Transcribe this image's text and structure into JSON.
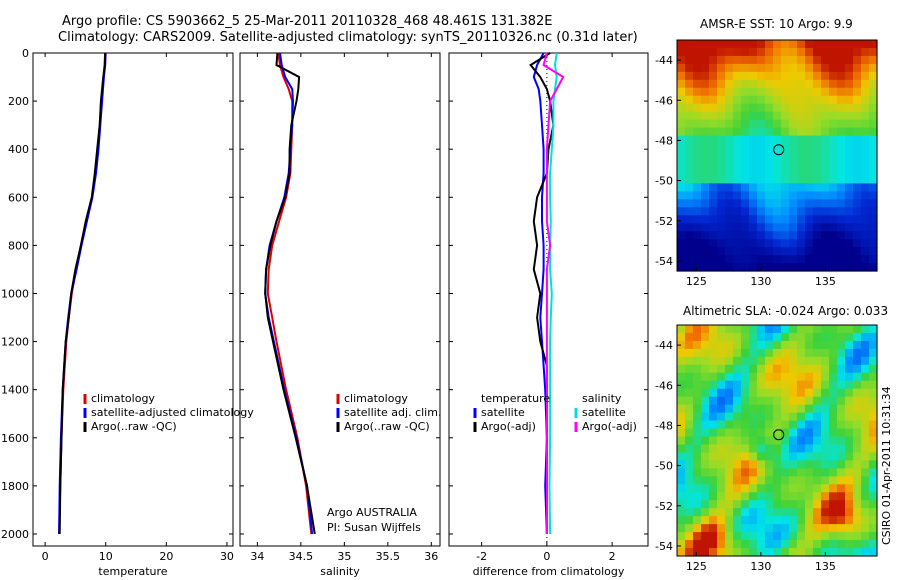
{
  "header": {
    "line1": "Argo profile: CS 5903662_5 25-Mar-2011 20110328_468 48.461S 131.382E",
    "line2": "Climatology: CARS2009. Satellite-adjusted climatology: synTS_20110326.nc (0.31d later)"
  },
  "credit": {
    "line1": "Argo AUSTRALIA",
    "line2": "PI: Susan Wijffels"
  },
  "stamp": "CSIRO 01-Apr-2011 10:31:34",
  "colors": {
    "red": "#e00000",
    "blue": "#0000ff",
    "black": "#000000",
    "cyan": "#00e0e0",
    "magenta": "#ff00ff"
  },
  "chart_data": [
    {
      "type": "line",
      "id": "temperature",
      "xlabel": "temperature",
      "xlim": [
        -2,
        31
      ],
      "ylim": [
        0,
        2050
      ],
      "xticks": [
        0,
        10,
        20,
        30
      ],
      "yticks": [
        0,
        200,
        400,
        600,
        800,
        1000,
        1200,
        1400,
        1600,
        1800,
        2000
      ],
      "legend": [
        "climatology",
        "satellite-adjusted climatology",
        "Argo(..raw -QC)"
      ],
      "depth": [
        0,
        50,
        100,
        200,
        300,
        400,
        500,
        600,
        700,
        800,
        900,
        1000,
        1100,
        1200,
        1400,
        1600,
        1800,
        2000
      ],
      "series": [
        {
          "name": "climatology",
          "color": "red",
          "values": [
            9.9,
            9.8,
            9.6,
            9.3,
            9.0,
            8.7,
            8.3,
            7.7,
            6.8,
            5.9,
            5.1,
            4.4,
            3.9,
            3.5,
            3.0,
            2.7,
            2.5,
            2.3
          ]
        },
        {
          "name": "satellite-adjusted climatology",
          "color": "blue",
          "values": [
            10.0,
            9.9,
            9.7,
            9.4,
            9.1,
            8.8,
            8.4,
            7.8,
            6.9,
            6.0,
            5.2,
            4.3,
            3.8,
            3.4,
            2.9,
            2.6,
            2.4,
            2.3
          ]
        },
        {
          "name": "Argo(..raw -QC)",
          "color": "black",
          "values": [
            9.9,
            9.9,
            9.6,
            9.2,
            9.0,
            8.6,
            8.2,
            7.7,
            6.7,
            5.9,
            5.0,
            4.3,
            3.9,
            3.4,
            2.9,
            2.7,
            2.5,
            2.4
          ]
        }
      ]
    },
    {
      "type": "line",
      "id": "salinity",
      "xlabel": "salinity",
      "xlim": [
        33.8,
        36.1
      ],
      "ylim": [
        0,
        2050
      ],
      "xticks": [
        34,
        34.5,
        35,
        35.5,
        36
      ],
      "yticks": [
        0,
        200,
        400,
        600,
        800,
        1000,
        1200,
        1400,
        1600,
        1800,
        2000
      ],
      "legend": [
        "climatology",
        "satellite adj. clim.",
        "Argo(..raw -QC)"
      ],
      "depth": [
        0,
        50,
        100,
        150,
        200,
        300,
        400,
        500,
        600,
        700,
        800,
        900,
        1000,
        1100,
        1200,
        1400,
        1600,
        1800,
        2000
      ],
      "series": [
        {
          "name": "climatology",
          "color": "red",
          "values": [
            34.24,
            34.26,
            34.3,
            34.36,
            34.4,
            34.4,
            34.39,
            34.38,
            34.33,
            34.25,
            34.17,
            34.13,
            34.12,
            34.17,
            34.22,
            34.33,
            34.46,
            34.56,
            34.62
          ]
        },
        {
          "name": "satellite adj. clim.",
          "color": "blue",
          "values": [
            34.26,
            34.28,
            34.32,
            34.4,
            34.41,
            34.4,
            34.38,
            34.36,
            34.31,
            34.22,
            34.14,
            34.1,
            34.09,
            34.13,
            34.19,
            34.31,
            34.45,
            34.57,
            34.63
          ]
        },
        {
          "name": "Argo(..raw -QC)",
          "color": "black",
          "values": [
            34.23,
            34.22,
            34.48,
            34.47,
            34.45,
            34.39,
            34.37,
            34.37,
            34.32,
            34.22,
            34.15,
            34.1,
            34.09,
            34.12,
            34.18,
            34.3,
            34.44,
            34.57,
            34.66
          ]
        }
      ]
    },
    {
      "type": "line",
      "id": "difference",
      "xlabel": "difference from climatology",
      "xlim": [
        -3,
        3.1
      ],
      "ylim": [
        0,
        2050
      ],
      "xticks": [
        -2,
        0,
        2
      ],
      "yticks": [
        0,
        200,
        400,
        600,
        800,
        1000,
        1200,
        1400,
        1600,
        1800,
        2000
      ],
      "legend_temperature": [
        "temperature",
        "satellite",
        "Argo(-adj)"
      ],
      "legend_salinity": [
        "salinity",
        "satellite",
        "Argo(-adj)"
      ],
      "depth": [
        0,
        50,
        100,
        150,
        200,
        300,
        400,
        500,
        600,
        700,
        800,
        900,
        1000,
        1100,
        1200,
        1300,
        1400,
        1600,
        1800,
        2000
      ],
      "series": [
        {
          "name": "temperature satellite",
          "color": "blue",
          "values": [
            -0.1,
            -0.3,
            -0.4,
            -0.25,
            -0.2,
            -0.15,
            -0.1,
            -0.1,
            -0.15,
            -0.15,
            -0.1,
            -0.1,
            -0.15,
            -0.2,
            -0.15,
            -0.1,
            -0.05,
            0.0,
            -0.05,
            0.0
          ]
        },
        {
          "name": "temperature Argo(-adj)",
          "color": "black",
          "values": [
            0.1,
            -0.5,
            -0.2,
            0.0,
            0.1,
            0.2,
            0.05,
            0.0,
            -0.3,
            -0.4,
            -0.3,
            -0.4,
            -0.2,
            -0.3,
            -0.2,
            0.0,
            0.0,
            0.0,
            0.0,
            0.0
          ]
        },
        {
          "name": "salinity satellite",
          "color": "cyan",
          "values": [
            0.3,
            0.25,
            0.3,
            0.25,
            0.2,
            0.2,
            0.15,
            0.1,
            0.1,
            0.12,
            0.1,
            0.1,
            0.15,
            0.12,
            0.1,
            0.1,
            0.1,
            0.1,
            0.08,
            0.1
          ]
        },
        {
          "name": "salinity Argo(-adj)",
          "color": "magenta",
          "values": [
            0.0,
            -0.1,
            0.5,
            0.3,
            0.1,
            0.05,
            0.0,
            0.0,
            0.0,
            0.0,
            0.1,
            0.0,
            0.0,
            0.0,
            0.0,
            0.0,
            0.0,
            0.0,
            0.0,
            0.0
          ]
        }
      ]
    },
    {
      "type": "heatmap",
      "id": "sst",
      "title": "AMSR-E SST: 10 Argo: 9.9",
      "xlim": [
        123.5,
        139
      ],
      "ylim": [
        -54.5,
        -43
      ],
      "xticks": [
        125,
        130,
        135
      ],
      "yticks": [
        -44,
        -46,
        -48,
        -50,
        -52,
        -54
      ],
      "marker": {
        "lon": 131.382,
        "lat": -48.461
      }
    },
    {
      "type": "heatmap",
      "id": "sla",
      "title": "Altimetric SLA: -0.024 Argo: 0.033",
      "xlim": [
        123.5,
        139
      ],
      "ylim": [
        -54.5,
        -43
      ],
      "xticks": [
        125,
        130,
        135
      ],
      "yticks": [
        -44,
        -46,
        -48,
        -50,
        -52,
        -54
      ],
      "marker": {
        "lon": 131.382,
        "lat": -48.461
      }
    }
  ]
}
